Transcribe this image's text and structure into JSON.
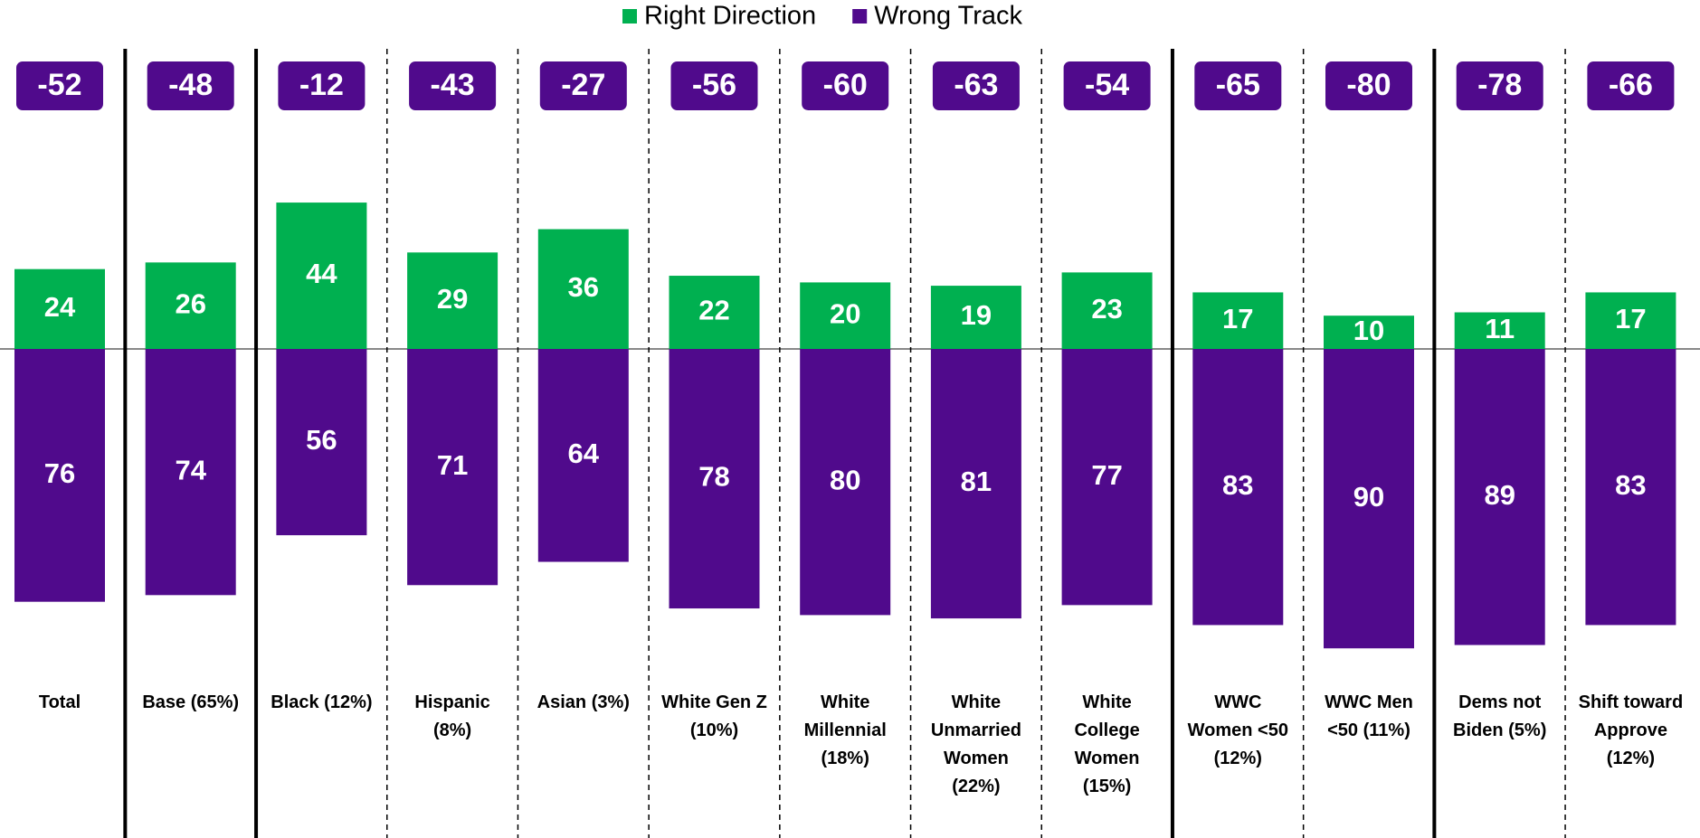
{
  "chart_data": {
    "type": "diverging-bar",
    "categories": [
      "Total",
      "Base (65%)",
      "Black (12%)",
      "Hispanic (8%)",
      "Asian (3%)",
      "White Gen Z (10%)",
      "White Millennial (18%)",
      "White Unmarried Women (22%)",
      "White College Women (15%)",
      "WWC Women <50 (12%)",
      "WWC Men <50 (11%)",
      "Dems not Biden (5%)",
      "Shift toward Approve (12%)"
    ],
    "series": [
      {
        "name": "Right Direction",
        "color": "#00b050",
        "values": [
          24,
          26,
          44,
          29,
          36,
          22,
          20,
          19,
          23,
          17,
          10,
          11,
          17
        ]
      },
      {
        "name": "Wrong Track",
        "color": "#500a8c",
        "values": [
          76,
          74,
          56,
          71,
          64,
          78,
          80,
          81,
          77,
          83,
          90,
          89,
          83
        ]
      }
    ],
    "net_values": [
      -52,
      -48,
      -12,
      -43,
      -27,
      -56,
      -60,
      -63,
      -54,
      -65,
      -80,
      -78,
      -66
    ]
  }
}
